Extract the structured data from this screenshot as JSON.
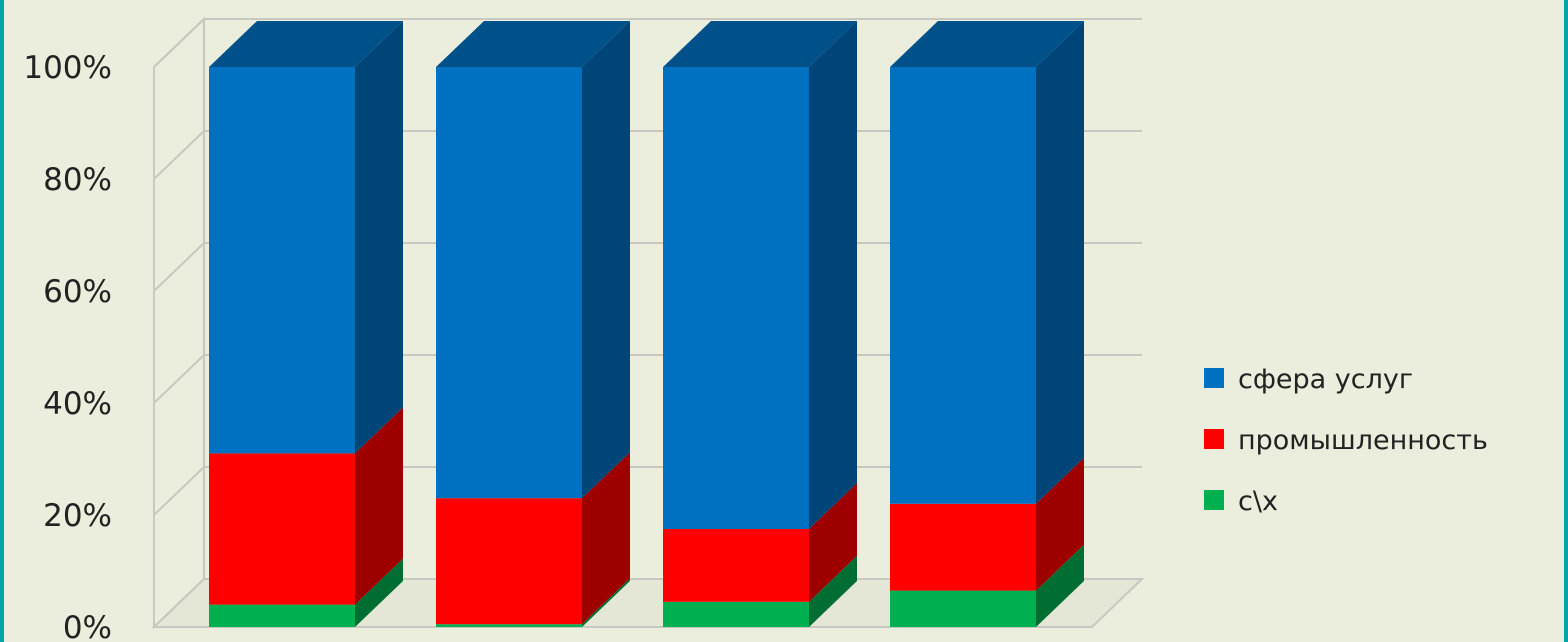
{
  "chart_data": {
    "type": "bar",
    "stacked": true,
    "percent_stacked": true,
    "three_d": true,
    "categories": [
      "",
      "",
      "",
      ""
    ],
    "series": [
      {
        "name": "с\\х",
        "color": "#00b050",
        "values": [
          4,
          0.5,
          4.5,
          6.5
        ]
      },
      {
        "name": "промышленность",
        "color": "#ff0000",
        "values": [
          27,
          22.5,
          13,
          15.5
        ]
      },
      {
        "name": "сфера услуг",
        "color": "#0070c0",
        "values": [
          69,
          77,
          82.5,
          78
        ]
      }
    ],
    "y_ticks": [
      "0%",
      "20%",
      "40%",
      "60%",
      "80%",
      "100%"
    ],
    "ylim": [
      0,
      100
    ],
    "grid": true,
    "legend_position": "right",
    "title": "",
    "xlabel": "",
    "ylabel": ""
  }
}
